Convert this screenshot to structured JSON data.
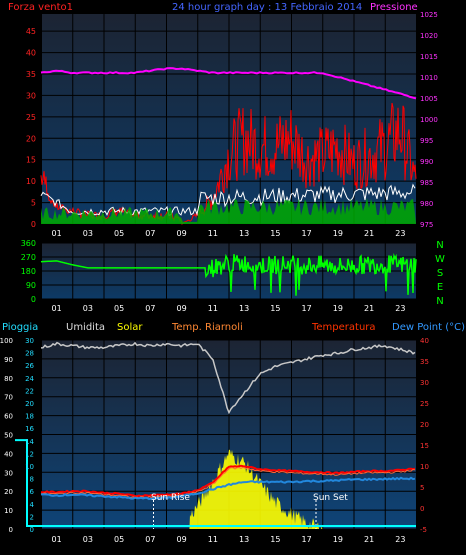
{
  "top": {
    "left_label": "Forza vento1",
    "title": "24 hour graph day : 13 Febbraio 2014",
    "right_label": "Pressione",
    "left_ticks": [
      "0",
      "5",
      "10",
      "15",
      "20",
      "25",
      "30",
      "35",
      "40",
      "45"
    ],
    "right_ticks": [
      "975",
      "980",
      "985",
      "990",
      "995",
      "1000",
      "1005",
      "1010",
      "1015",
      "1020",
      "1025"
    ]
  },
  "mid": {
    "ticks": [
      "0",
      "90",
      "180",
      "270",
      "360"
    ],
    "compass": [
      "N",
      "W",
      "S",
      "E",
      "N"
    ]
  },
  "bottom": {
    "legend": {
      "rain": "Pioggia",
      "humidity": "Umidita",
      "solar": "Solar",
      "heat": "Temp. Riarnoli",
      "temp": "Temperatura",
      "dew": "Dew Point (°C)"
    },
    "left_ticks": [
      "0",
      "10",
      "20",
      "30",
      "40",
      "50",
      "60",
      "70",
      "80",
      "90",
      "100"
    ],
    "inner_ticks": [
      "0",
      "2",
      "4",
      "6",
      "8",
      "10",
      "12",
      "14",
      "16",
      "18",
      "20",
      "22",
      "24",
      "26",
      "28",
      "30"
    ],
    "right_ticks": [
      "-5",
      "0",
      "5",
      "10",
      "15",
      "20",
      "25",
      "30",
      "35",
      "40"
    ],
    "sunrise": "Sun Rise",
    "sunset": "Sun Set"
  },
  "x_ticks": [
    "01",
    "03",
    "05",
    "07",
    "09",
    "11",
    "13",
    "15",
    "17",
    "19",
    "21",
    "23"
  ],
  "colors": {
    "wind": "#ff0000",
    "gust": "#ffffff",
    "avg_wind": "#00aa00",
    "pressure": "#ff00ff",
    "direction": "#00ff00",
    "humidity": "#c8c8c8",
    "solar": "#ffff00",
    "temp": "#ff0000",
    "heat": "#ff6633",
    "dew": "#2288dd",
    "rain": "#00ffff",
    "bg_top": "#1a2a40",
    "bg_bottom": "#0c3f70",
    "grid": "#000000"
  },
  "chart_data": [
    {
      "type": "line",
      "title": "24 hour graph day : 13 Febbraio 2014",
      "x": [
        0,
        1,
        2,
        3,
        4,
        5,
        6,
        7,
        8,
        9,
        10,
        11,
        12,
        13,
        14,
        15,
        16,
        17,
        18,
        19,
        20,
        21,
        22,
        23,
        24
      ],
      "series": [
        {
          "name": "Pressione",
          "axis": "right",
          "values": [
            1011,
            1011.5,
            1011,
            1011,
            1011,
            1011,
            1011,
            1011.5,
            1012,
            1012,
            1011.5,
            1011,
            1011,
            1011,
            1011,
            1011,
            1011,
            1011,
            1011,
            1010,
            1009,
            1008,
            1007,
            1006,
            1005
          ]
        },
        {
          "name": "Forza vento1",
          "axis": "left",
          "values": [
            8,
            3,
            2,
            1,
            1,
            2,
            1,
            1,
            1,
            0,
            2,
            6,
            16,
            20,
            18,
            18,
            20,
            15,
            16,
            18,
            14,
            16,
            18,
            22,
            10
          ]
        }
      ],
      "ylim": [
        0,
        49
      ],
      "y2lim": [
        975,
        1025
      ]
    },
    {
      "type": "line",
      "x": [
        0,
        1,
        2,
        3,
        4,
        5,
        6,
        7,
        8,
        9,
        10,
        11,
        12,
        13,
        14,
        15,
        16,
        17,
        18,
        19,
        20,
        21,
        22,
        23,
        24
      ],
      "values": [
        240,
        245,
        220,
        200,
        200,
        200,
        200,
        200,
        200,
        200,
        200,
        200,
        230,
        230,
        215,
        220,
        225,
        215,
        220,
        210,
        215,
        220,
        225,
        220,
        225
      ],
      "ylim": [
        0,
        360
      ]
    },
    {
      "type": "line",
      "x": [
        0,
        1,
        2,
        3,
        4,
        5,
        6,
        7,
        8,
        9,
        10,
        11,
        12,
        13,
        14,
        15,
        16,
        17,
        18,
        19,
        20,
        21,
        22,
        23,
        24
      ],
      "series": [
        {
          "name": "Umidita",
          "axis": "left",
          "values": [
            96,
            98,
            97,
            96,
            96,
            97,
            98,
            97,
            98,
            97,
            98,
            90,
            62,
            72,
            82,
            86,
            88,
            90,
            92,
            93,
            95,
            96,
            97,
            95,
            93
          ]
        },
        {
          "name": "Solar",
          "axis": "left",
          "values": [
            0,
            0,
            0,
            0,
            0,
            0,
            0,
            0,
            0,
            0,
            12,
            25,
            40,
            35,
            24,
            14,
            8,
            3,
            0,
            0,
            0,
            0,
            0,
            0,
            0
          ]
        },
        {
          "name": "Temperatura",
          "axis": "right",
          "values": [
            3.8,
            3.8,
            4,
            4,
            3.6,
            3.4,
            2.9,
            3,
            3.2,
            3.4,
            4.2,
            6,
            9.8,
            10,
            9.2,
            9,
            8.8,
            8.6,
            8.5,
            8.3,
            8.6,
            8.8,
            8.8,
            9,
            9.5
          ]
        },
        {
          "name": "Dew Point (°C)",
          "axis": "right",
          "values": [
            3.2,
            3,
            3.2,
            3,
            2.8,
            2.6,
            2.3,
            2.3,
            2.4,
            2.8,
            3.5,
            4.5,
            5.5,
            6.2,
            6.2,
            6.2,
            6.2,
            6.4,
            6.4,
            6.6,
            6.8,
            6.8,
            6.9,
            7,
            7
          ]
        },
        {
          "name": "Pioggia",
          "axis": "left",
          "values": [
            0,
            0,
            0,
            0,
            0,
            0,
            0,
            0,
            0,
            0,
            0,
            0,
            0,
            0,
            0,
            0,
            0,
            0,
            0,
            0,
            0,
            0,
            0,
            0,
            0
          ]
        }
      ],
      "ylim": [
        0,
        100
      ],
      "y2lim": [
        -5,
        40
      ]
    }
  ]
}
